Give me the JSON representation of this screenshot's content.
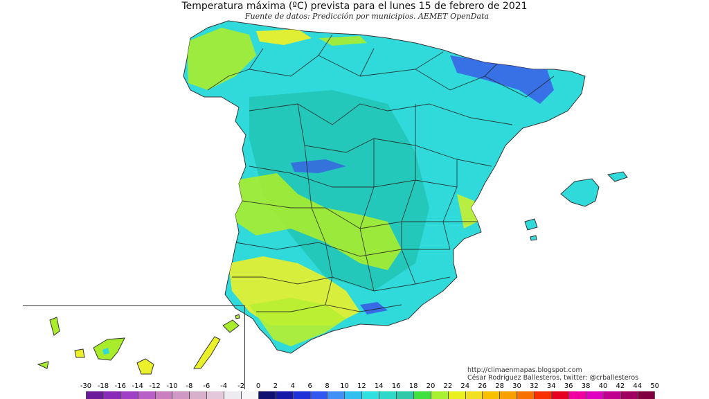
{
  "title": "Temperatura máxima (ºC) prevista para el lunes 15 de febrero de 2021",
  "subtitle": "Fuente de datos: Predicción por municipios. AEMET OpenData",
  "credit": {
    "line1": "http://climaenmapas.blogspot.com",
    "line2": "César Rodríguez Ballesteros, twitter: @crballesteros"
  },
  "legend": {
    "ticks": [
      "-30",
      "-18",
      "-16",
      "-14",
      "-12",
      "-10",
      "-8",
      "-6",
      "-4",
      "-2",
      "0",
      "2",
      "4",
      "6",
      "8",
      "10",
      "12",
      "14",
      "16",
      "18",
      "20",
      "22",
      "24",
      "26",
      "28",
      "30",
      "32",
      "34",
      "36",
      "38",
      "40",
      "42",
      "44",
      "50"
    ],
    "colors": [
      "#6a1a9a",
      "#8a2ab8",
      "#a040c8",
      "#b860c8",
      "#c880c0",
      "#d098c4",
      "#d8b0cc",
      "#e2c8d8",
      "#ececf0",
      "#f6f6f8",
      "#101070",
      "#1818a8",
      "#2030d8",
      "#3058f0",
      "#4090f8",
      "#30c0f0",
      "#30e0e0",
      "#30d8c8",
      "#30c8a8",
      "#40e040",
      "#a8f030",
      "#e8f020",
      "#f0e020",
      "#f8c000",
      "#f8a000",
      "#f87000",
      "#f83000",
      "#e80020",
      "#f000a0",
      "#e000c0",
      "#c00090",
      "#a00060",
      "#800040"
    ]
  },
  "colors": {
    "cyan": "#30dada",
    "teal": "#22c4b4",
    "lime": "#a8ec2c",
    "yellow": "#eaf02a",
    "blue": "#3b4ee8",
    "border": "#222222"
  }
}
